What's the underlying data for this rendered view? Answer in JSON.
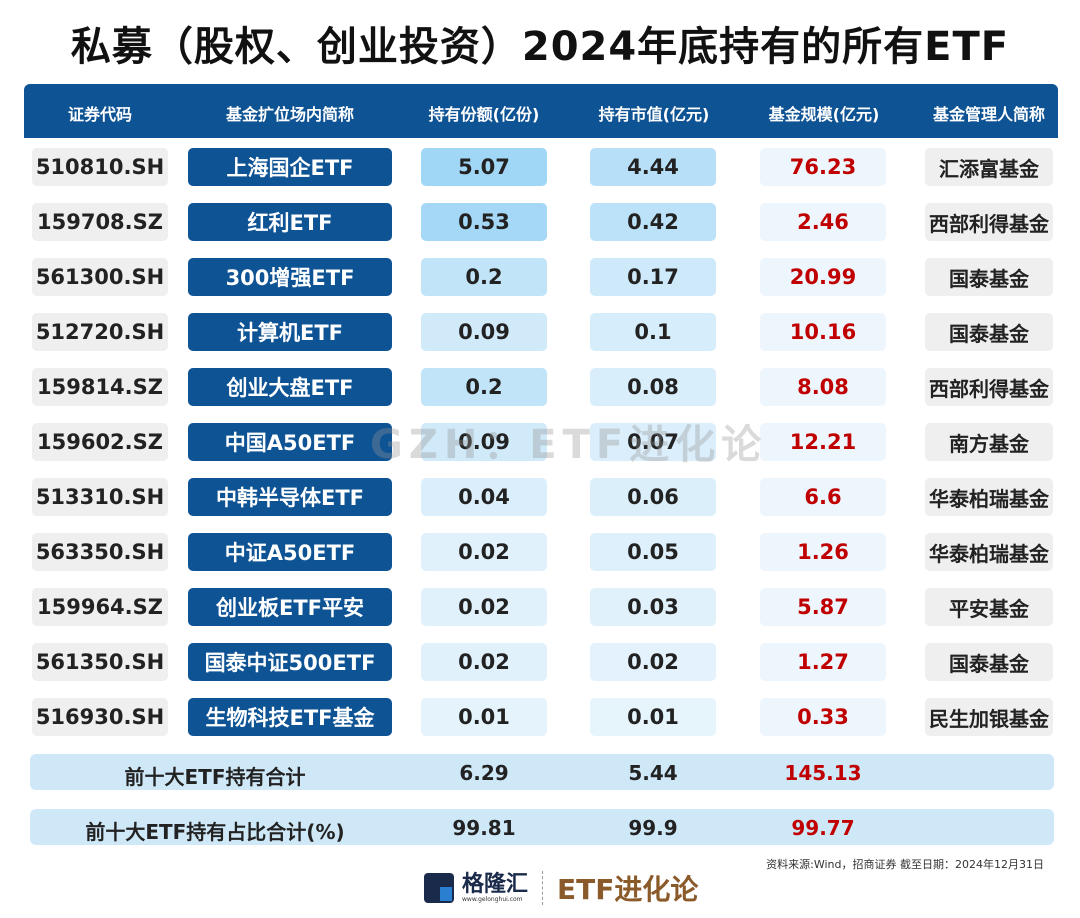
{
  "title": "私募（股权、创业投资）2024年底持有的所有ETF",
  "headers": [
    "证券代码",
    "基金扩位场内简称",
    "持有份额(亿份)",
    "持有市值(亿元)",
    "基金规模(亿元)",
    "基金管理人简称"
  ],
  "rows": [
    [
      "510810.SH",
      "上海国企ETF",
      "5.07",
      "4.44",
      "76.23",
      "汇添富基金"
    ],
    [
      "159708.SZ",
      "红利ETF",
      "0.53",
      "0.42",
      "2.46",
      "西部利得基金"
    ],
    [
      "561300.SH",
      "300增强ETF",
      "0.2",
      "0.17",
      "20.99",
      "国泰基金"
    ],
    [
      "512720.SH",
      "计算机ETF",
      "0.09",
      "0.1",
      "10.16",
      "国泰基金"
    ],
    [
      "159814.SZ",
      "创业大盘ETF",
      "0.2",
      "0.08",
      "8.08",
      "西部利得基金"
    ],
    [
      "159602.SZ",
      "中国A50ETF",
      "0.09",
      "0.07",
      "12.21",
      "南方基金"
    ],
    [
      "513310.SH",
      "中韩半导体ETF",
      "0.04",
      "0.06",
      "6.6",
      "华泰柏瑞基金"
    ],
    [
      "563350.SH",
      "中证A50ETF",
      "0.02",
      "0.05",
      "1.26",
      "华泰柏瑞基金"
    ],
    [
      "159964.SZ",
      "创业板ETF平安",
      "0.02",
      "0.03",
      "5.87",
      "平安基金"
    ],
    [
      "561350.SH",
      "国泰中证500ETF",
      "0.02",
      "0.02",
      "1.27",
      "国泰基金"
    ],
    [
      "516930.SH",
      "生物科技ETF基金",
      "0.01",
      "0.01",
      "0.33",
      "民生加银基金"
    ]
  ],
  "summary": [
    {
      "label": "前十大ETF持有合计",
      "shares": "6.29",
      "value": "5.44",
      "scale": "145.13"
    },
    {
      "label": "前十大ETF持有占比合计(%)",
      "shares": "99.81",
      "value": "99.9",
      "scale": "99.77"
    }
  ],
  "watermark": "GZH：ETF进化论",
  "source": "资料来源:Wind，招商证券 截至日期：2024年12月31日",
  "brand": {
    "name": "格隆汇",
    "url": "www.gelonghui.com",
    "etf": "ETF进化论"
  }
}
